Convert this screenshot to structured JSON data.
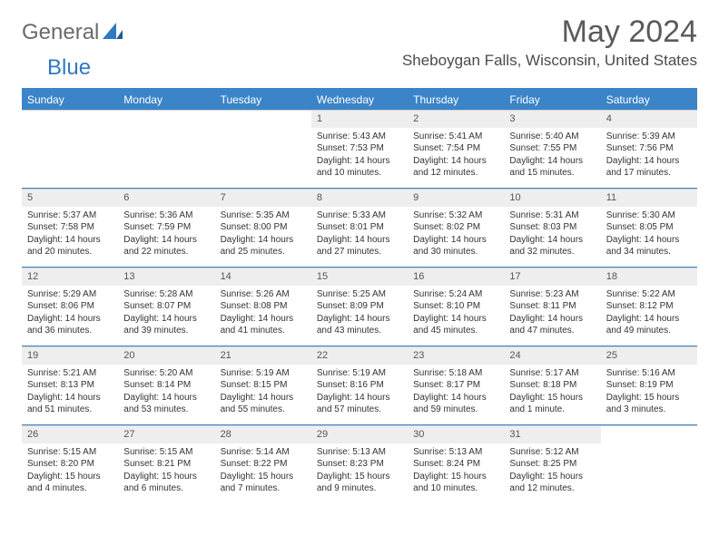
{
  "logo": {
    "general": "General",
    "blue": "Blue"
  },
  "title": "May 2024",
  "location": "Sheboygan Falls, Wisconsin, United States",
  "colors": {
    "header_bg": "#3b84c8",
    "header_text": "#ffffff",
    "daynum_bg": "#eeeeee",
    "body_text": "#333333",
    "divider": "#3b84c8"
  },
  "weekdays": [
    "Sunday",
    "Monday",
    "Tuesday",
    "Wednesday",
    "Thursday",
    "Friday",
    "Saturday"
  ],
  "weeks": [
    [
      null,
      null,
      null,
      {
        "d": "1",
        "sr": "5:43 AM",
        "ss": "7:53 PM",
        "dl": "Daylight: 14 hours and 10 minutes."
      },
      {
        "d": "2",
        "sr": "5:41 AM",
        "ss": "7:54 PM",
        "dl": "Daylight: 14 hours and 12 minutes."
      },
      {
        "d": "3",
        "sr": "5:40 AM",
        "ss": "7:55 PM",
        "dl": "Daylight: 14 hours and 15 minutes."
      },
      {
        "d": "4",
        "sr": "5:39 AM",
        "ss": "7:56 PM",
        "dl": "Daylight: 14 hours and 17 minutes."
      }
    ],
    [
      {
        "d": "5",
        "sr": "5:37 AM",
        "ss": "7:58 PM",
        "dl": "Daylight: 14 hours and 20 minutes."
      },
      {
        "d": "6",
        "sr": "5:36 AM",
        "ss": "7:59 PM",
        "dl": "Daylight: 14 hours and 22 minutes."
      },
      {
        "d": "7",
        "sr": "5:35 AM",
        "ss": "8:00 PM",
        "dl": "Daylight: 14 hours and 25 minutes."
      },
      {
        "d": "8",
        "sr": "5:33 AM",
        "ss": "8:01 PM",
        "dl": "Daylight: 14 hours and 27 minutes."
      },
      {
        "d": "9",
        "sr": "5:32 AM",
        "ss": "8:02 PM",
        "dl": "Daylight: 14 hours and 30 minutes."
      },
      {
        "d": "10",
        "sr": "5:31 AM",
        "ss": "8:03 PM",
        "dl": "Daylight: 14 hours and 32 minutes."
      },
      {
        "d": "11",
        "sr": "5:30 AM",
        "ss": "8:05 PM",
        "dl": "Daylight: 14 hours and 34 minutes."
      }
    ],
    [
      {
        "d": "12",
        "sr": "5:29 AM",
        "ss": "8:06 PM",
        "dl": "Daylight: 14 hours and 36 minutes."
      },
      {
        "d": "13",
        "sr": "5:28 AM",
        "ss": "8:07 PM",
        "dl": "Daylight: 14 hours and 39 minutes."
      },
      {
        "d": "14",
        "sr": "5:26 AM",
        "ss": "8:08 PM",
        "dl": "Daylight: 14 hours and 41 minutes."
      },
      {
        "d": "15",
        "sr": "5:25 AM",
        "ss": "8:09 PM",
        "dl": "Daylight: 14 hours and 43 minutes."
      },
      {
        "d": "16",
        "sr": "5:24 AM",
        "ss": "8:10 PM",
        "dl": "Daylight: 14 hours and 45 minutes."
      },
      {
        "d": "17",
        "sr": "5:23 AM",
        "ss": "8:11 PM",
        "dl": "Daylight: 14 hours and 47 minutes."
      },
      {
        "d": "18",
        "sr": "5:22 AM",
        "ss": "8:12 PM",
        "dl": "Daylight: 14 hours and 49 minutes."
      }
    ],
    [
      {
        "d": "19",
        "sr": "5:21 AM",
        "ss": "8:13 PM",
        "dl": "Daylight: 14 hours and 51 minutes."
      },
      {
        "d": "20",
        "sr": "5:20 AM",
        "ss": "8:14 PM",
        "dl": "Daylight: 14 hours and 53 minutes."
      },
      {
        "d": "21",
        "sr": "5:19 AM",
        "ss": "8:15 PM",
        "dl": "Daylight: 14 hours and 55 minutes."
      },
      {
        "d": "22",
        "sr": "5:19 AM",
        "ss": "8:16 PM",
        "dl": "Daylight: 14 hours and 57 minutes."
      },
      {
        "d": "23",
        "sr": "5:18 AM",
        "ss": "8:17 PM",
        "dl": "Daylight: 14 hours and 59 minutes."
      },
      {
        "d": "24",
        "sr": "5:17 AM",
        "ss": "8:18 PM",
        "dl": "Daylight: 15 hours and 1 minute."
      },
      {
        "d": "25",
        "sr": "5:16 AM",
        "ss": "8:19 PM",
        "dl": "Daylight: 15 hours and 3 minutes."
      }
    ],
    [
      {
        "d": "26",
        "sr": "5:15 AM",
        "ss": "8:20 PM",
        "dl": "Daylight: 15 hours and 4 minutes."
      },
      {
        "d": "27",
        "sr": "5:15 AM",
        "ss": "8:21 PM",
        "dl": "Daylight: 15 hours and 6 minutes."
      },
      {
        "d": "28",
        "sr": "5:14 AM",
        "ss": "8:22 PM",
        "dl": "Daylight: 15 hours and 7 minutes."
      },
      {
        "d": "29",
        "sr": "5:13 AM",
        "ss": "8:23 PM",
        "dl": "Daylight: 15 hours and 9 minutes."
      },
      {
        "d": "30",
        "sr": "5:13 AM",
        "ss": "8:24 PM",
        "dl": "Daylight: 15 hours and 10 minutes."
      },
      {
        "d": "31",
        "sr": "5:12 AM",
        "ss": "8:25 PM",
        "dl": "Daylight: 15 hours and 12 minutes."
      },
      null
    ]
  ],
  "labels": {
    "sunrise": "Sunrise:",
    "sunset": "Sunset:"
  }
}
